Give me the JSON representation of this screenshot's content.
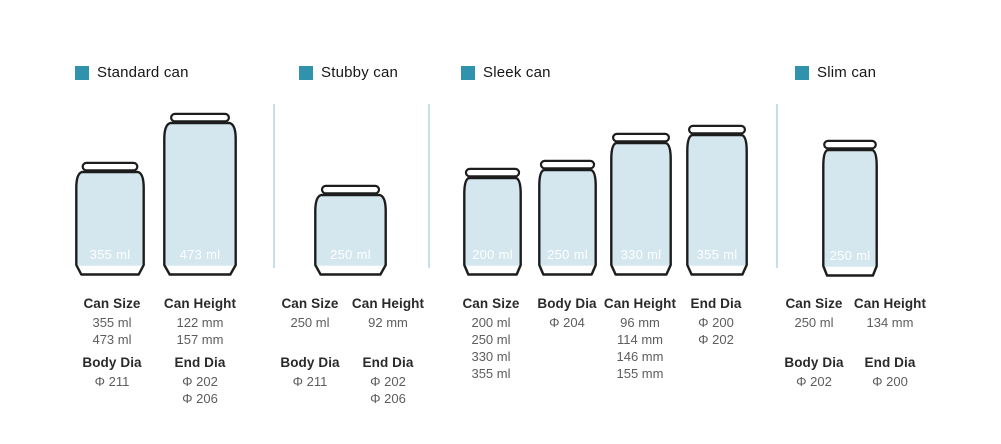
{
  "palette": {
    "accent": "#2f93ad",
    "can_fill": "#d5e7ee",
    "outline": "#1d1d1d",
    "divider": "#c6e0e9",
    "value_text": "#5d5d5d"
  },
  "sections": [
    {
      "title": "Standard can",
      "cans": [
        {
          "volume": "355 ml"
        },
        {
          "volume": "473 ml"
        }
      ],
      "specs": {
        "can_size": {
          "label": "Can Size",
          "values": [
            "355 ml",
            "473 ml"
          ]
        },
        "can_height": {
          "label": "Can Height",
          "values": [
            "122 mm",
            "157 mm"
          ]
        },
        "body_dia": {
          "label": "Body Dia",
          "values": [
            "Φ 211"
          ]
        },
        "end_dia": {
          "label": "End Dia",
          "values": [
            "Φ 202",
            "Φ 206"
          ]
        }
      }
    },
    {
      "title": "Stubby can",
      "cans": [
        {
          "volume": "250 ml"
        }
      ],
      "specs": {
        "can_size": {
          "label": "Can Size",
          "values": [
            "250 ml"
          ]
        },
        "can_height": {
          "label": "Can Height",
          "values": [
            "92 mm"
          ]
        },
        "body_dia": {
          "label": "Body Dia",
          "values": [
            "Φ 211"
          ]
        },
        "end_dia": {
          "label": "End Dia",
          "values": [
            "Φ 202",
            "Φ 206"
          ]
        }
      }
    },
    {
      "title": "Sleek can",
      "cans": [
        {
          "volume": "200 ml"
        },
        {
          "volume": "250 ml"
        },
        {
          "volume": "330 ml"
        },
        {
          "volume": "355 ml"
        }
      ],
      "specs": {
        "can_size": {
          "label": "Can Size",
          "values": [
            "200 ml",
            "250 ml",
            "330 ml",
            "355 ml"
          ]
        },
        "body_dia": {
          "label": "Body Dia",
          "values": [
            "Φ 204"
          ]
        },
        "can_height": {
          "label": "Can Height",
          "values": [
            "96 mm",
            "114 mm",
            "146 mm",
            "155 mm"
          ]
        },
        "end_dia": {
          "label": "End Dia",
          "values": [
            "Φ 200",
            "Φ 202"
          ]
        }
      }
    },
    {
      "title": "Slim can",
      "cans": [
        {
          "volume": "250 ml"
        }
      ],
      "specs": {
        "can_size": {
          "label": "Can Size",
          "values": [
            "250 ml"
          ]
        },
        "can_height": {
          "label": "Can Height",
          "values": [
            "134 mm"
          ]
        },
        "body_dia": {
          "label": "Body Dia",
          "values": [
            "Φ 202"
          ]
        },
        "end_dia": {
          "label": "End Dia",
          "values": [
            "Φ 200"
          ]
        }
      }
    }
  ]
}
